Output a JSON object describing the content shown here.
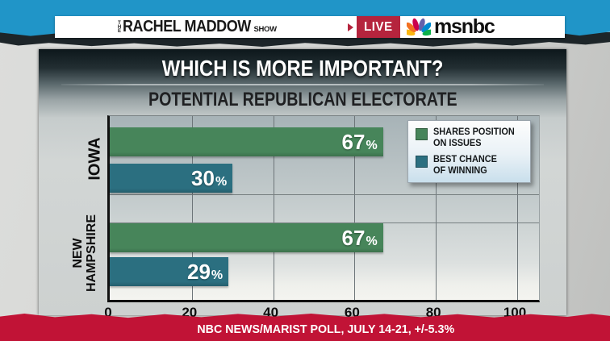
{
  "header": {
    "show_logo": {
      "the": "THE",
      "name": "RACHEL MADDOW",
      "show": "SHOW"
    },
    "live_badge": "LIVE",
    "network_name": "msnbc",
    "peacock_colors": [
      "#fcb711",
      "#f37021",
      "#cc004c",
      "#6460aa",
      "#0089d0",
      "#0db14b"
    ]
  },
  "chart": {
    "title": "WHICH IS MORE IMPORTANT?",
    "subtitle": "POTENTIAL REPUBLICAN ELECTORATE"
  },
  "chart_data": {
    "type": "bar",
    "orientation": "horizontal",
    "title": "WHICH IS MORE IMPORTANT?",
    "subtitle": "POTENTIAL REPUBLICAN ELECTORATE",
    "categories": [
      "IOWA",
      "NEW HAMPSHIRE"
    ],
    "categories_display": [
      [
        "IOWA"
      ],
      [
        "NEW",
        "HAMPSHIRE"
      ]
    ],
    "series": [
      {
        "name": "SHARES POSITION ON ISSUES",
        "legend_lines": [
          "SHARES POSITION",
          "ON ISSUES"
        ],
        "color": "#47855a",
        "values": [
          67,
          67
        ]
      },
      {
        "name": "BEST CHANCE OF WINNING",
        "legend_lines": [
          "BEST CHANCE",
          "OF WINNING"
        ],
        "color": "#2b6f80",
        "values": [
          30,
          29
        ]
      }
    ],
    "value_suffix": "%",
    "xlim": [
      0,
      100
    ],
    "xticks": [
      0,
      20,
      40,
      60,
      80,
      100
    ],
    "grid": true,
    "legend_position": "upper right"
  },
  "colors": {
    "accent_blue": "#2095c8",
    "banner_red": "#c11336",
    "live_red": "#b5243d"
  },
  "footer": {
    "source": "NBC NEWS/MARIST POLL, JULY 14-21, +/-5.3%"
  }
}
